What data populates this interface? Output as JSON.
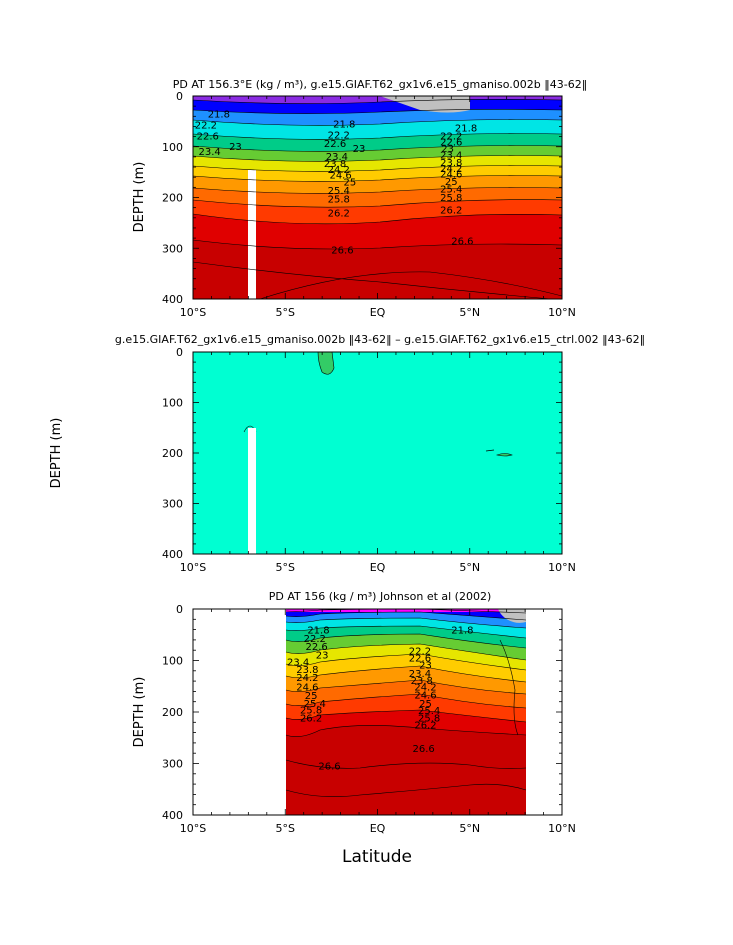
{
  "figure": {
    "xlabel": "Latitude",
    "colors": {
      "magenta": "#ff00ff",
      "purple": "#c000ff",
      "violet": "#8a2be2",
      "blue": "#0000ff",
      "lightblue": "#1e90ff",
      "cyan": "#00e5e5",
      "aqua": "#00ffd0",
      "green": "#33cc33",
      "yellow": "#e6e600",
      "orange": "#ff9900",
      "orangered": "#ff5500",
      "red": "#e00000",
      "darkred": "#c80000",
      "land": "#c0c0c0",
      "mask": "#ffffff",
      "difference_fill": "#00ffd2",
      "difference_green": "#33cc66"
    }
  },
  "chart_data": [
    {
      "type": "contour",
      "title": "PD AT 156.3°E (kg / m³), g.e15.GIAF.T62_gx1v6.e15_gmaniso.002b ‖43-62‖",
      "xlabel": "",
      "ylabel": "DEPTH (m)",
      "xlim": [
        -10,
        10
      ],
      "ylim": [
        400,
        0
      ],
      "x_ticks": [
        -10,
        -5,
        0,
        5,
        10
      ],
      "x_tick_labels": [
        "10°S",
        "5°S",
        "EQ",
        "5°N",
        "10°N"
      ],
      "y_ticks": [
        0,
        100,
        200,
        300,
        400
      ],
      "y_tick_labels": [
        "0",
        "100",
        "200",
        "300",
        "400"
      ],
      "levels": [
        21.8,
        22.2,
        22.6,
        23,
        23.4,
        23.8,
        24.2,
        24.6,
        25,
        25.4,
        25.8,
        26.2,
        26.6
      ],
      "contour_labels": [
        {
          "text": "21.8",
          "lat": -8.6,
          "depth": 42
        },
        {
          "text": "22.2",
          "lat": -9.3,
          "depth": 64
        },
        {
          "text": "22.6",
          "lat": -9.2,
          "depth": 86
        },
        {
          "text": "23",
          "lat": -7.7,
          "depth": 106
        },
        {
          "text": "23.4",
          "lat": -9.1,
          "depth": 116
        },
        {
          "text": "21.8",
          "lat": -1.8,
          "depth": 62
        },
        {
          "text": "22.2",
          "lat": -2.1,
          "depth": 84
        },
        {
          "text": "22.6",
          "lat": -2.3,
          "depth": 100
        },
        {
          "text": "23",
          "lat": -1.0,
          "depth": 110
        },
        {
          "text": "23.4",
          "lat": -2.2,
          "depth": 126
        },
        {
          "text": "23.8",
          "lat": -2.3,
          "depth": 140
        },
        {
          "text": "24.2",
          "lat": -2.1,
          "depth": 152
        },
        {
          "text": "24.6",
          "lat": -2.0,
          "depth": 163
        },
        {
          "text": "25",
          "lat": -1.5,
          "depth": 176
        },
        {
          "text": "25.4",
          "lat": -2.1,
          "depth": 193
        },
        {
          "text": "25.8",
          "lat": -2.1,
          "depth": 210
        },
        {
          "text": "26.2",
          "lat": -2.1,
          "depth": 237
        },
        {
          "text": "26.6",
          "lat": -1.9,
          "depth": 310
        },
        {
          "text": "21.8",
          "lat": 4.8,
          "depth": 70
        },
        {
          "text": "22.2",
          "lat": 4.0,
          "depth": 86
        },
        {
          "text": "22.6",
          "lat": 4.0,
          "depth": 98
        },
        {
          "text": "23",
          "lat": 3.8,
          "depth": 110
        },
        {
          "text": "23.4",
          "lat": 4.0,
          "depth": 123
        },
        {
          "text": "23.8",
          "lat": 4.0,
          "depth": 138
        },
        {
          "text": "24.2",
          "lat": 4.0,
          "depth": 150
        },
        {
          "text": "24.6",
          "lat": 4.0,
          "depth": 161
        },
        {
          "text": "25",
          "lat": 4.0,
          "depth": 175
        },
        {
          "text": "25.4",
          "lat": 4.0,
          "depth": 190
        },
        {
          "text": "25.8",
          "lat": 4.0,
          "depth": 207
        },
        {
          "text": "26.2",
          "lat": 4.0,
          "depth": 232
        },
        {
          "text": "26.6",
          "lat": 4.6,
          "depth": 293
        }
      ]
    },
    {
      "type": "contour",
      "title": "g.e15.GIAF.T62_gx1v6.e15_gmaniso.002b ‖43-62‖ – g.e15.GIAF.T62_gx1v6.e15_ctrl.002 ‖43-62‖",
      "xlabel": "",
      "ylabel": "DEPTH (m)",
      "xlim": [
        -10,
        10
      ],
      "ylim": [
        400,
        0
      ],
      "x_ticks": [
        -10,
        -5,
        0,
        5,
        10
      ],
      "x_tick_labels": [
        "10°S",
        "5°S",
        "EQ",
        "5°N",
        "10°N"
      ],
      "y_ticks": [
        0,
        100,
        200,
        300,
        400
      ],
      "y_tick_labels": [
        "0",
        "100",
        "200",
        "300",
        "400"
      ],
      "contour_labels": []
    },
    {
      "type": "contour",
      "title": "PD AT 156 (kg / m³) Johnson et al (2002)",
      "xlabel": "Latitude",
      "ylabel": "DEPTH (m)",
      "xlim": [
        -10,
        10
      ],
      "ylim": [
        400,
        0
      ],
      "data_lat_range": [
        -5,
        8
      ],
      "x_ticks": [
        -10,
        -5,
        0,
        5,
        10
      ],
      "x_tick_labels": [
        "10°S",
        "5°S",
        "EQ",
        "5°N",
        "10°N"
      ],
      "y_ticks": [
        0,
        100,
        200,
        300,
        400
      ],
      "y_tick_labels": [
        "0",
        "100",
        "200",
        "300",
        "400"
      ],
      "levels": [
        21.8,
        22.2,
        22.6,
        23,
        23.4,
        23.8,
        24.2,
        24.6,
        25,
        25.4,
        25.8,
        26.2,
        26.6
      ],
      "contour_labels": [
        {
          "text": "21.8",
          "lat": -3.2,
          "depth": 48
        },
        {
          "text": "22.2",
          "lat": -3.4,
          "depth": 64
        },
        {
          "text": "22.6",
          "lat": -3.3,
          "depth": 80
        },
        {
          "text": "23",
          "lat": -3.0,
          "depth": 96
        },
        {
          "text": "23.4",
          "lat": -4.3,
          "depth": 110
        },
        {
          "text": "23.8",
          "lat": -3.8,
          "depth": 124
        },
        {
          "text": "24.2",
          "lat": -3.8,
          "depth": 140
        },
        {
          "text": "24.6",
          "lat": -3.8,
          "depth": 158
        },
        {
          "text": "25",
          "lat": -3.6,
          "depth": 175
        },
        {
          "text": "25.4",
          "lat": -3.4,
          "depth": 190
        },
        {
          "text": "25.8",
          "lat": -3.6,
          "depth": 203
        },
        {
          "text": "26.2",
          "lat": -3.6,
          "depth": 218
        },
        {
          "text": "26.6",
          "lat": -2.6,
          "depth": 312
        },
        {
          "text": "21.8",
          "lat": 4.6,
          "depth": 48
        },
        {
          "text": "22.2",
          "lat": 2.3,
          "depth": 88
        },
        {
          "text": "22.6",
          "lat": 2.3,
          "depth": 102
        },
        {
          "text": "23",
          "lat": 2.6,
          "depth": 116
        },
        {
          "text": "23.4",
          "lat": 2.3,
          "depth": 132
        },
        {
          "text": "23.8",
          "lat": 2.4,
          "depth": 146
        },
        {
          "text": "24.2",
          "lat": 2.6,
          "depth": 158
        },
        {
          "text": "24.6",
          "lat": 2.6,
          "depth": 174
        },
        {
          "text": "25",
          "lat": 2.6,
          "depth": 190
        },
        {
          "text": "25.4",
          "lat": 2.8,
          "depth": 204
        },
        {
          "text": "25.8",
          "lat": 2.8,
          "depth": 218
        },
        {
          "text": "26.2",
          "lat": 2.6,
          "depth": 232
        },
        {
          "text": "26.6",
          "lat": 2.5,
          "depth": 278
        }
      ]
    }
  ]
}
